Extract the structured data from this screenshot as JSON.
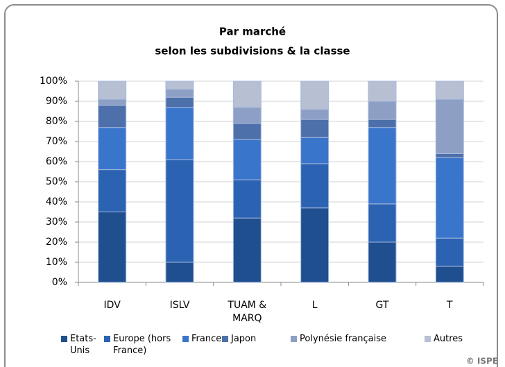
{
  "chart_data": {
    "type": "stacked_bar",
    "title": "Par marché",
    "subtitle": "selon les subdivisions & la classe",
    "categories": [
      "IDV",
      "ISLV",
      "TUAM & MARQ",
      "L",
      "GT",
      "T"
    ],
    "series": [
      {
        "name": "Etats-Unis",
        "color": "#1f4f8f",
        "values": [
          35,
          10,
          32,
          37,
          20,
          8
        ]
      },
      {
        "name": "Europe (hors France)",
        "color": "#2b63b2",
        "values": [
          21,
          51,
          19,
          22,
          19,
          14
        ]
      },
      {
        "name": "France",
        "color": "#3a75cc",
        "values": [
          21,
          26,
          20,
          13,
          38,
          40
        ]
      },
      {
        "name": "Japon",
        "color": "#4d70aa",
        "values": [
          11,
          5,
          8,
          9,
          4,
          2
        ]
      },
      {
        "name": "Polynésie française",
        "color": "#8e9fc6",
        "values": [
          3,
          4,
          8,
          5,
          9,
          27
        ]
      },
      {
        "name": "Autres",
        "color": "#b7bfd3",
        "values": [
          9,
          4,
          13,
          14,
          10,
          9
        ]
      }
    ],
    "ylim": [
      0,
      100
    ],
    "yticks": [
      {
        "value": 0,
        "label": "0%"
      },
      {
        "value": 10,
        "label": "10%"
      },
      {
        "value": 20,
        "label": "20%"
      },
      {
        "value": 30,
        "label": "30%"
      },
      {
        "value": 40,
        "label": "40%"
      },
      {
        "value": 50,
        "label": "50%"
      },
      {
        "value": 60,
        "label": "60%"
      },
      {
        "value": 70,
        "label": "70%"
      },
      {
        "value": 80,
        "label": "80%"
      },
      {
        "value": 90,
        "label": "90%"
      },
      {
        "value": 100,
        "label": "100%"
      }
    ],
    "grid": true,
    "legend": "bottom",
    "source": "© ISPE"
  }
}
